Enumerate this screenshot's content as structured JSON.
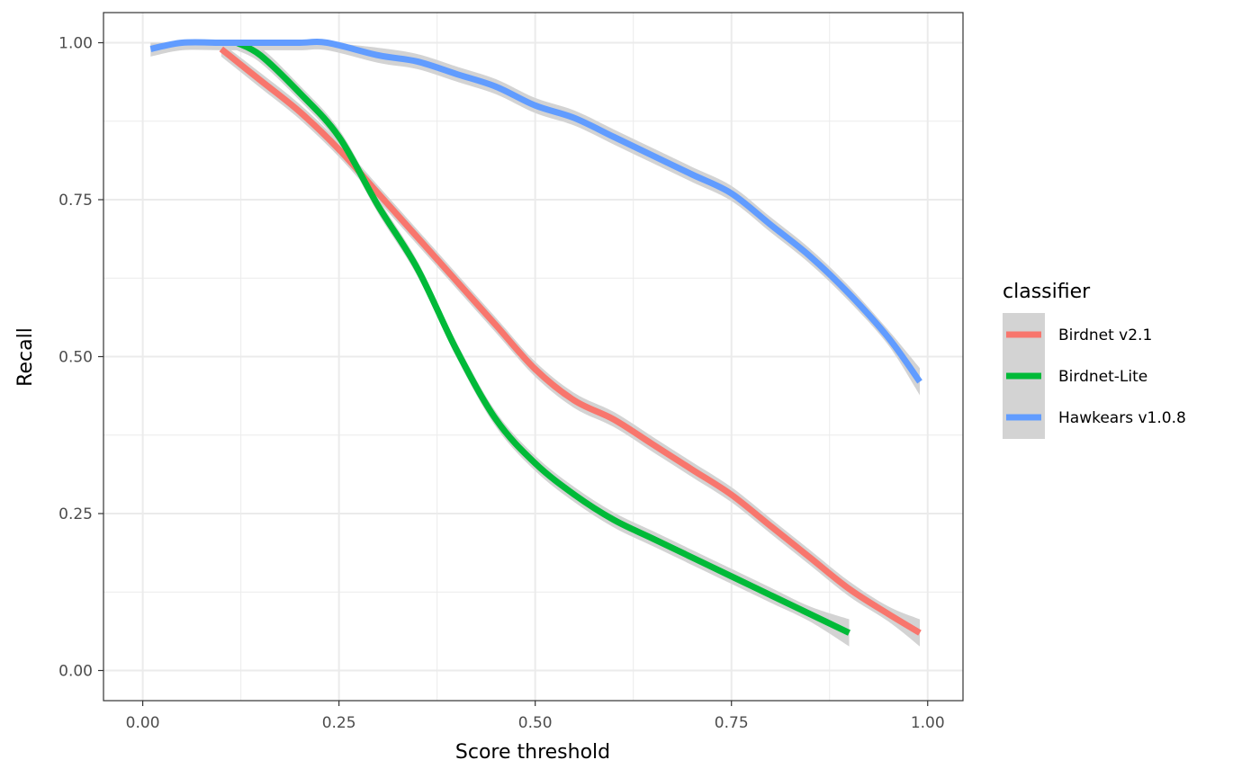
{
  "chart_data": {
    "type": "line",
    "xlabel": "Score threshold",
    "ylabel": "Recall",
    "xlim": [
      -0.05,
      1.045
    ],
    "ylim": [
      -0.048,
      1.048
    ],
    "x_ticks": [
      0,
      0.25,
      0.5,
      0.75,
      1
    ],
    "x_tick_labels": [
      "0.00",
      "0.25",
      "0.50",
      "0.75",
      "1.00"
    ],
    "y_ticks": [
      0,
      0.25,
      0.5,
      0.75,
      1
    ],
    "y_tick_labels": [
      "0.00",
      "0.25",
      "0.50",
      "0.75",
      "1.00"
    ],
    "grid": true,
    "legend_title": "classifier",
    "legend_position": "right",
    "confidence_band_color": "#d3d3d3",
    "series": [
      {
        "name": "Birdnet v2.1",
        "color": "#F8766D",
        "band": 0.012,
        "x": [
          0.1,
          0.15,
          0.2,
          0.25,
          0.3,
          0.35,
          0.4,
          0.45,
          0.5,
          0.55,
          0.6,
          0.65,
          0.7,
          0.75,
          0.8,
          0.85,
          0.9,
          0.95,
          0.99
        ],
        "y": [
          0.99,
          0.94,
          0.89,
          0.83,
          0.76,
          0.69,
          0.62,
          0.55,
          0.48,
          0.43,
          0.4,
          0.36,
          0.32,
          0.28,
          0.23,
          0.18,
          0.13,
          0.09,
          0.06
        ]
      },
      {
        "name": "Birdnet-Lite",
        "color": "#00BA38",
        "band": 0.012,
        "x": [
          0.12,
          0.15,
          0.2,
          0.25,
          0.3,
          0.35,
          0.4,
          0.45,
          0.5,
          0.55,
          0.6,
          0.65,
          0.7,
          0.75,
          0.8,
          0.85,
          0.9
        ],
        "y": [
          1.0,
          0.98,
          0.92,
          0.85,
          0.74,
          0.64,
          0.51,
          0.4,
          0.33,
          0.28,
          0.24,
          0.21,
          0.18,
          0.15,
          0.12,
          0.09,
          0.06
        ]
      },
      {
        "name": "Hawkears v1.0.8",
        "color": "#619CFF",
        "band": 0.012,
        "x": [
          0.01,
          0.05,
          0.1,
          0.15,
          0.2,
          0.235,
          0.3,
          0.35,
          0.4,
          0.45,
          0.5,
          0.55,
          0.6,
          0.65,
          0.7,
          0.75,
          0.8,
          0.85,
          0.9,
          0.95,
          0.99
        ],
        "y": [
          0.99,
          1.0,
          1.0,
          1.0,
          1.0,
          1.0,
          0.98,
          0.97,
          0.95,
          0.93,
          0.9,
          0.88,
          0.85,
          0.82,
          0.79,
          0.76,
          0.71,
          0.66,
          0.6,
          0.53,
          0.46
        ]
      }
    ]
  }
}
